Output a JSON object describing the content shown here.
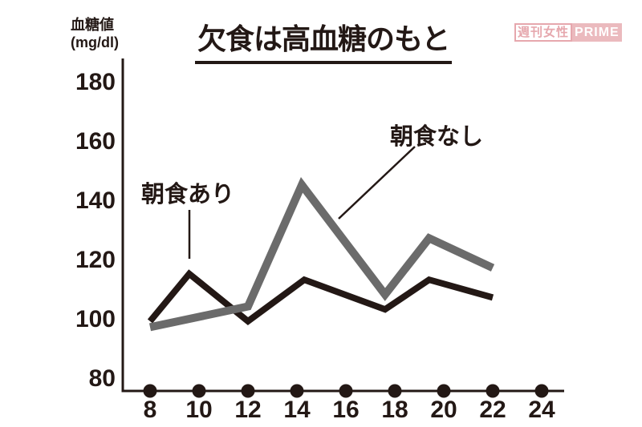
{
  "watermark": {
    "left": "週刊女性",
    "right": "PRIME",
    "pink": "#e8aeb3"
  },
  "chart_data": {
    "type": "line",
    "title": "欠食は高血糖のもと",
    "ylabel": "血糖値",
    "ylabel_unit": "(mg/dl)",
    "xlabel": "",
    "x_tick_values": [
      8,
      10,
      12,
      14,
      16,
      18,
      20,
      22,
      24
    ],
    "y_tick_values": [
      80,
      100,
      120,
      140,
      160,
      180
    ],
    "xlim": [
      8,
      24.9
    ],
    "ylim": [
      76,
      185
    ],
    "grid": false,
    "legend_position": "inline-annotations",
    "axis_color": "#231815",
    "series": [
      {
        "name": "朝食あり",
        "color": "#231815",
        "stroke_width": 8,
        "points": [
          [
            8,
            100
          ],
          [
            9.6,
            116
          ],
          [
            12,
            100
          ],
          [
            14.3,
            114
          ],
          [
            17.6,
            104
          ],
          [
            19.4,
            114
          ],
          [
            22,
            108
          ]
        ]
      },
      {
        "name": "朝食なし",
        "color": "#6b6b6b",
        "stroke_width": 10,
        "points": [
          [
            8,
            98
          ],
          [
            12,
            105
          ],
          [
            14.2,
            146
          ],
          [
            17.6,
            109
          ],
          [
            19.4,
            128
          ],
          [
            22,
            118
          ]
        ]
      }
    ]
  }
}
